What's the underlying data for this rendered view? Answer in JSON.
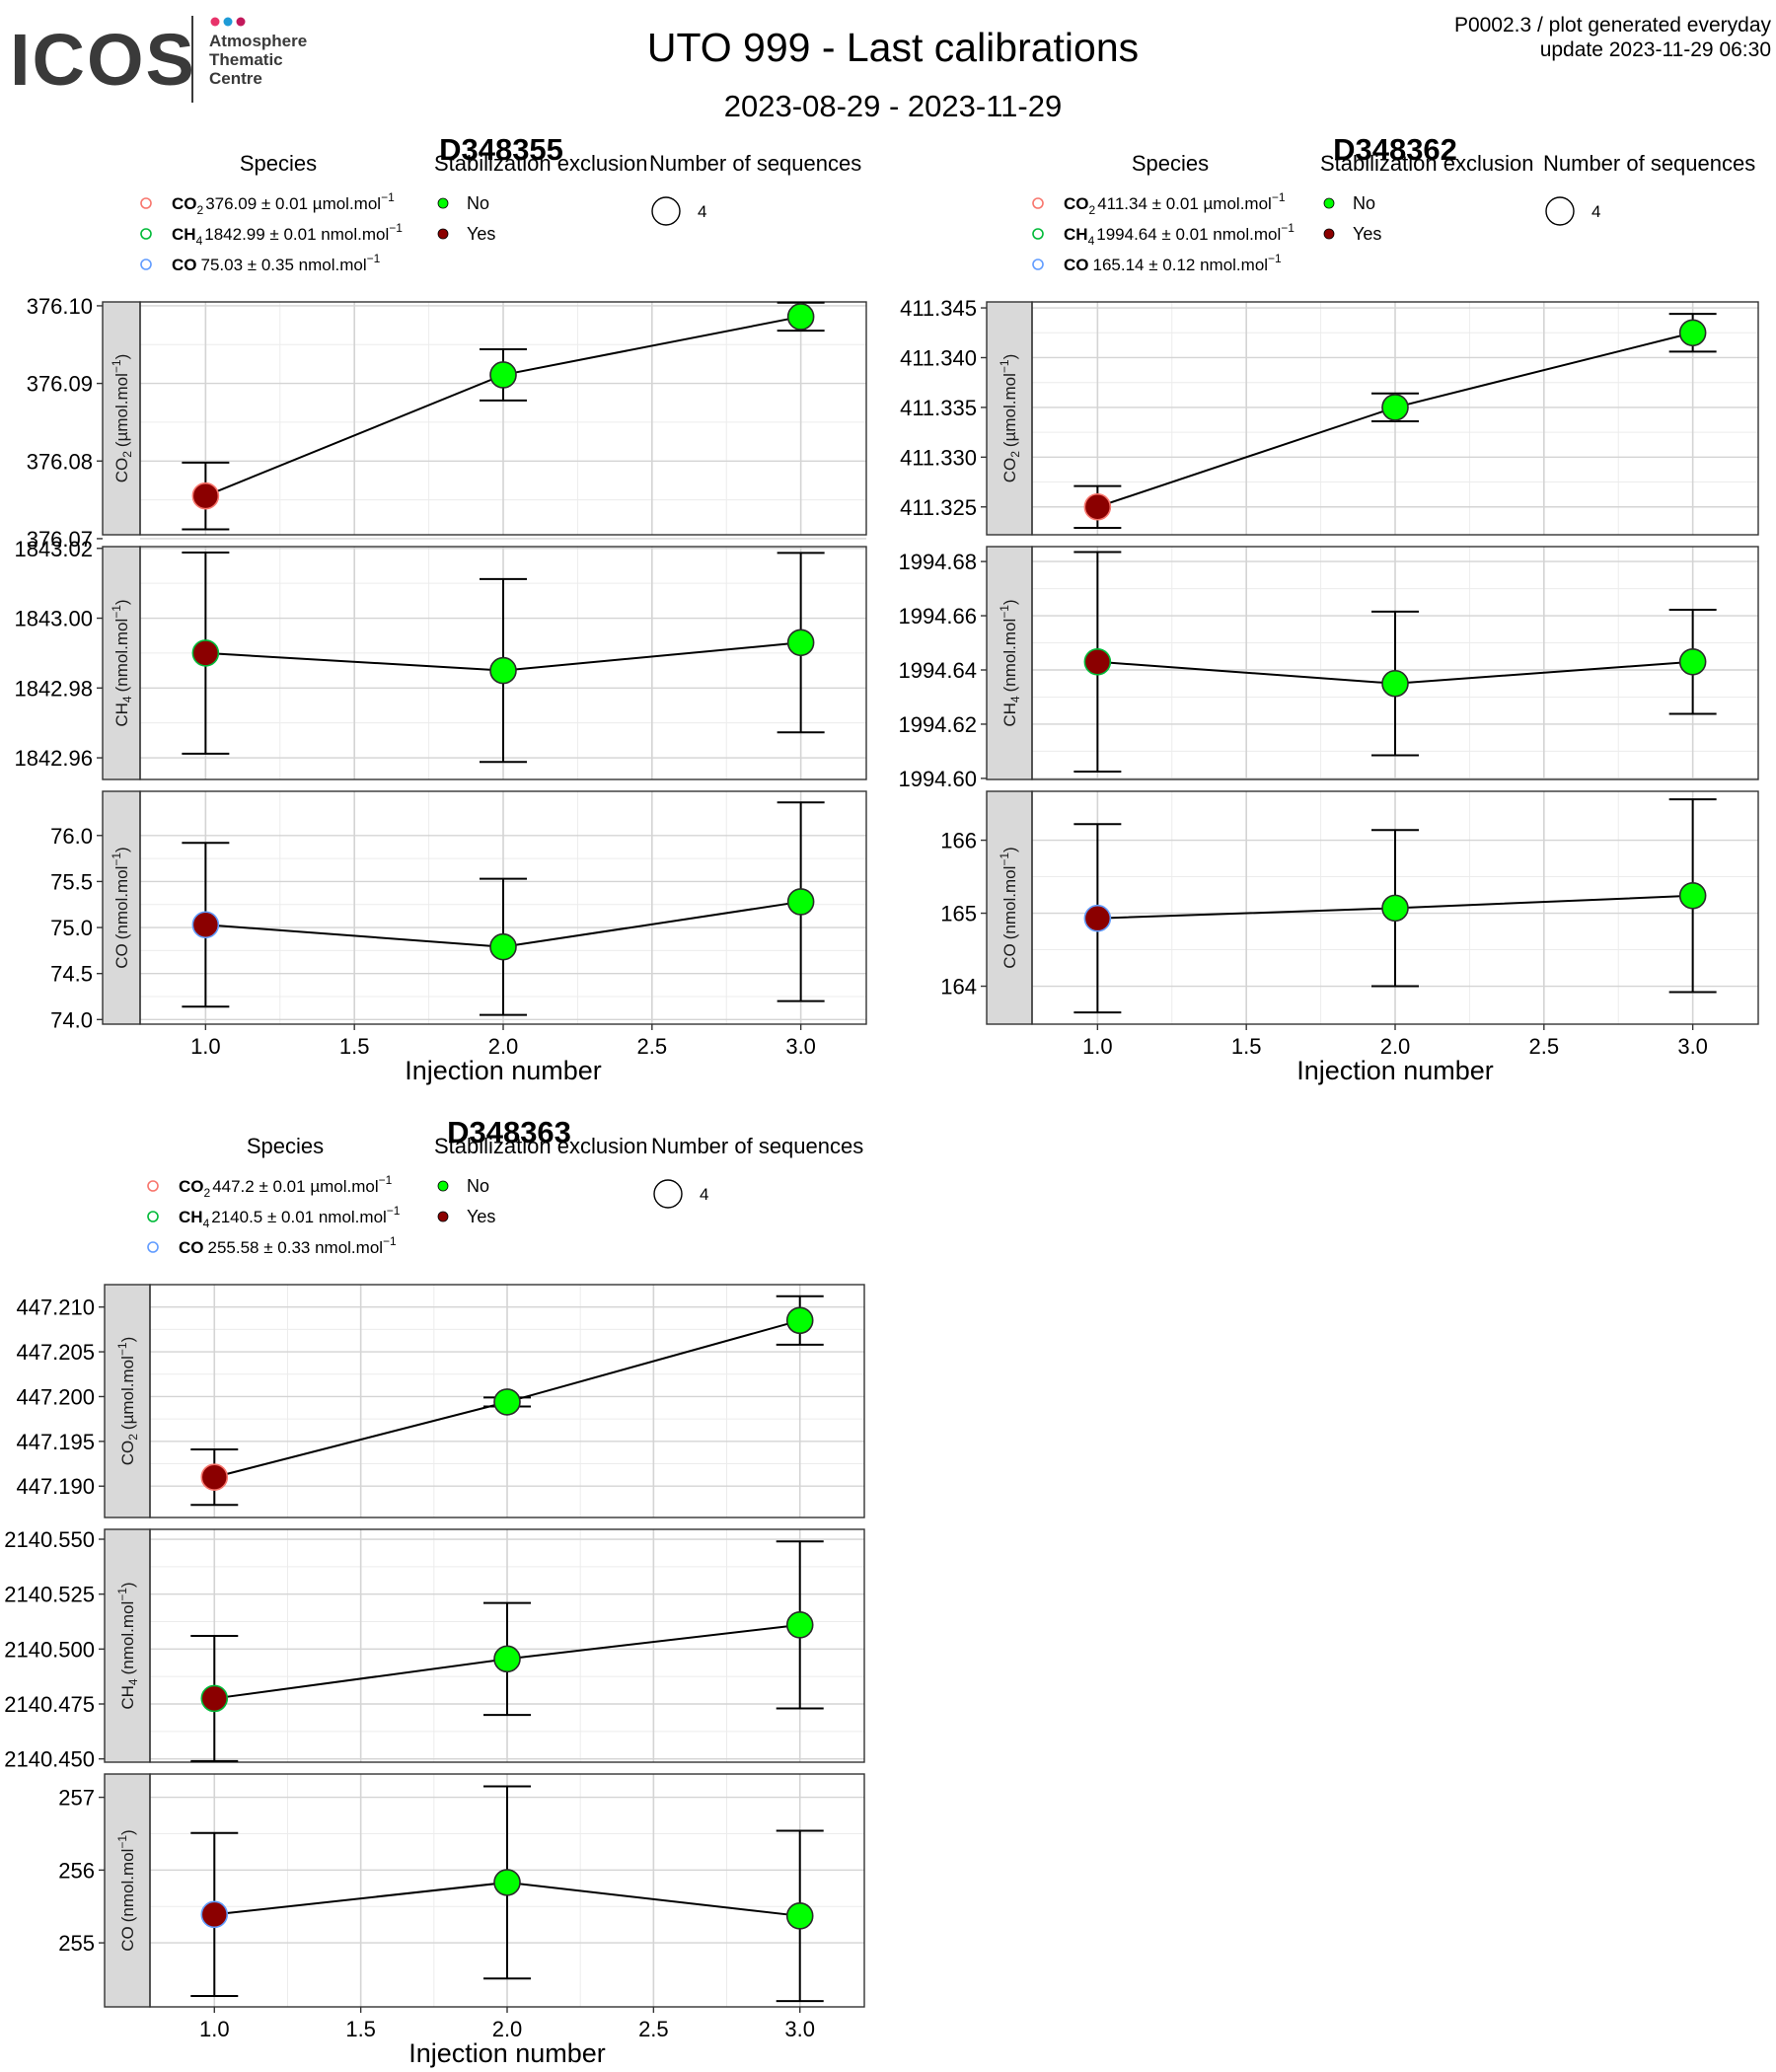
{
  "header": {
    "logo_text": "ICOS",
    "logo_sub": [
      "Atmosphere",
      "Thematic",
      "Centre"
    ],
    "title": "UTO 999 - Last calibrations",
    "subtitle": "2023-08-29 - 2023-11-29",
    "meta_line1": "P0002.3 / plot generated everyday",
    "meta_line2": "update  2023-11-29 06:30"
  },
  "legend_titles": {
    "species": "Species",
    "stabilization": "Stabilization exclusion",
    "sequences": "Number of sequences"
  },
  "legend_stab_items": [
    "No",
    "Yes"
  ],
  "legend_seq_value": "4",
  "colors": {
    "no": "#00ff00",
    "yes": "#8b0000",
    "co2": "#f8766d",
    "ch4": "#00ba38",
    "co": "#619cff",
    "strip": "#d9d9d9",
    "grid_major": "#d4d4d4",
    "grid_minor": "#ececec"
  },
  "x_axis": {
    "label": "Injection number",
    "ticks": [
      1.0,
      1.5,
      2.0,
      2.5,
      3.0
    ],
    "tick_labels": [
      "1.0",
      "1.5",
      "2.0",
      "2.5",
      "3.0"
    ],
    "range": [
      0.78,
      3.22
    ]
  },
  "chart_data": [
    {
      "type": "line",
      "title": "D348355",
      "x": [
        1,
        2,
        3
      ],
      "legend_species": [
        {
          "name": "CO",
          "sub": "2",
          "text": "376.09 ± 0.01 µmol.mol",
          "sup": "−1"
        },
        {
          "name": "CH",
          "sub": "4",
          "text": "1842.99 ± 0.01 nmol.mol",
          "sup": "−1"
        },
        {
          "name": "CO",
          "sub": "",
          "text": "75.03 ± 0.35 nmol.mol",
          "sup": "−1"
        }
      ],
      "panels": [
        {
          "species": "CO",
          "sub": "2",
          "unit": "(µmol.mol",
          "ylim": [
            376.0705,
            376.1005
          ],
          "ticks": [
            376.07,
            376.08,
            376.09,
            376.1
          ],
          "tick_labels": [
            "376.07",
            "376.08",
            "376.09",
            "376.10"
          ],
          "y": [
            376.0755,
            376.0911,
            376.0986
          ],
          "err": [
            0.0043,
            0.0033,
            0.0018
          ],
          "excluded": [
            true,
            false,
            false
          ]
        },
        {
          "species": "CH",
          "sub": "4",
          "unit": "(nmol.mol",
          "ylim": [
            1842.9538,
            1843.0205
          ],
          "ticks": [
            1842.96,
            1842.98,
            1843.0,
            1843.02
          ],
          "tick_labels": [
            "1842.96",
            "1842.98",
            "1843.00",
            "1843.02"
          ],
          "y": [
            1842.99,
            1842.985,
            1842.993
          ],
          "err": [
            0.0288,
            0.0262,
            0.0257
          ],
          "excluded": [
            true,
            false,
            false
          ]
        },
        {
          "species": "CO",
          "sub": "",
          "unit": "(nmol.mol",
          "ylim": [
            73.95,
            76.48
          ],
          "ticks": [
            74.0,
            74.5,
            75.0,
            75.5,
            76.0
          ],
          "tick_labels": [
            "74.0",
            "74.5",
            "75.0",
            "75.5",
            "76.0"
          ],
          "y": [
            75.03,
            74.79,
            75.28
          ],
          "err": [
            0.89,
            0.74,
            1.08
          ],
          "excluded": [
            true,
            false,
            false
          ]
        }
      ]
    },
    {
      "type": "line",
      "title": "D348362",
      "x": [
        1,
        2,
        3
      ],
      "legend_species": [
        {
          "name": "CO",
          "sub": "2",
          "text": "411.34 ± 0.01 µmol.mol",
          "sup": "−1"
        },
        {
          "name": "CH",
          "sub": "4",
          "text": "1994.64 ± 0.01 nmol.mol",
          "sup": "−1"
        },
        {
          "name": "CO",
          "sub": "",
          "text": "165.14 ± 0.12 nmol.mol",
          "sup": "−1"
        }
      ],
      "panels": [
        {
          "species": "CO",
          "sub": "2",
          "unit": "(µmol.mol",
          "ylim": [
            411.3222,
            411.3456
          ],
          "ticks": [
            411.325,
            411.33,
            411.335,
            411.34,
            411.345
          ],
          "tick_labels": [
            "411.325",
            "411.330",
            "411.335",
            "411.340",
            "411.345"
          ],
          "y": [
            411.325,
            411.335,
            411.3425
          ],
          "err": [
            0.0021,
            0.0014,
            0.0019
          ],
          "excluded": [
            true,
            false,
            false
          ]
        },
        {
          "species": "CH",
          "sub": "4",
          "unit": "(nmol.mol",
          "ylim": [
            1994.5996,
            1994.6855
          ],
          "ticks": [
            1994.6,
            1994.62,
            1994.64,
            1994.66,
            1994.68
          ],
          "tick_labels": [
            "1994.60",
            "1994.62",
            "1994.64",
            "1994.66",
            "1994.68"
          ],
          "y": [
            1994.643,
            1994.635,
            1994.643
          ],
          "err": [
            0.0405,
            0.0265,
            0.0192
          ],
          "excluded": [
            true,
            false,
            false
          ]
        },
        {
          "species": "CO",
          "sub": "",
          "unit": "(nmol.mol",
          "ylim": [
            163.48,
            166.67
          ],
          "ticks": [
            164,
            165,
            166
          ],
          "tick_labels": [
            "164",
            "165",
            "166"
          ],
          "y": [
            164.93,
            165.07,
            165.24
          ],
          "err": [
            1.29,
            1.07,
            1.32
          ],
          "excluded": [
            true,
            false,
            false
          ]
        }
      ]
    },
    {
      "type": "line",
      "title": "D348363",
      "x": [
        1,
        2,
        3
      ],
      "legend_species": [
        {
          "name": "CO",
          "sub": "2",
          "text": "447.2 ± 0.01 µmol.mol",
          "sup": "−1"
        },
        {
          "name": "CH",
          "sub": "4",
          "text": "2140.5 ± 0.01 nmol.mol",
          "sup": "−1"
        },
        {
          "name": "CO",
          "sub": "",
          "text": "255.58 ± 0.33 nmol.mol",
          "sup": "−1"
        }
      ],
      "panels": [
        {
          "species": "CO",
          "sub": "2",
          "unit": "(µmol.mol",
          "ylim": [
            447.1865,
            447.2125
          ],
          "ticks": [
            447.19,
            447.195,
            447.2,
            447.205,
            447.21
          ],
          "tick_labels": [
            "447.190",
            "447.195",
            "447.200",
            "447.205",
            "447.210"
          ],
          "y": [
            447.191,
            447.1994,
            447.2085
          ],
          "err": [
            0.0031,
            0.0005,
            0.0027
          ],
          "excluded": [
            true,
            false,
            false
          ]
        },
        {
          "species": "CH",
          "sub": "4",
          "unit": "(nmol.mol",
          "ylim": [
            2140.4485,
            2140.5545
          ],
          "ticks": [
            2140.45,
            2140.475,
            2140.5,
            2140.525,
            2140.55
          ],
          "tick_labels": [
            "2140.450",
            "2140.475",
            "2140.500",
            "2140.525",
            "2140.550"
          ],
          "y": [
            2140.4775,
            2140.4955,
            2140.511
          ],
          "err": [
            0.0285,
            0.0255,
            0.038
          ],
          "excluded": [
            true,
            false,
            false
          ]
        },
        {
          "species": "CO",
          "sub": "",
          "unit": "(nmol.mol",
          "ylim": [
            254.12,
            257.32
          ],
          "ticks": [
            255,
            256,
            257
          ],
          "tick_labels": [
            "255",
            "256",
            "257"
          ],
          "y": [
            255.39,
            255.83,
            255.37
          ],
          "err": [
            1.12,
            1.32,
            1.17
          ],
          "excluded": [
            true,
            false,
            false
          ]
        }
      ]
    }
  ]
}
